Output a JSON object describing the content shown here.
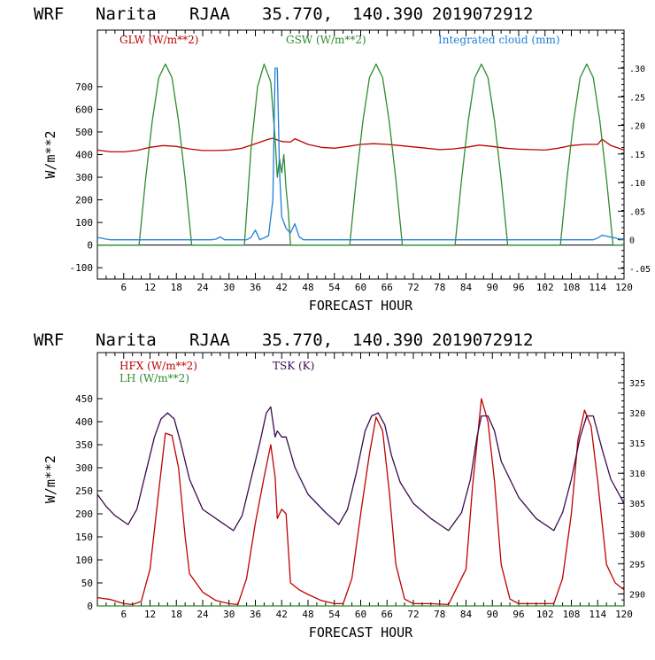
{
  "chart_data": [
    {
      "type": "line",
      "header": [
        "WRF",
        "Narita",
        "RJAA",
        "35.770,",
        "140.390",
        "2019072912"
      ],
      "xlabel": "FORECAST HOUR",
      "ylabel": "W/m**2",
      "xlim": [
        0,
        120
      ],
      "ylim": [
        -150,
        950
      ],
      "y2lim": [
        -0.0687,
        0.3667
      ],
      "x_ticks": [
        6,
        12,
        18,
        24,
        30,
        36,
        42,
        48,
        54,
        60,
        66,
        72,
        78,
        84,
        90,
        96,
        102,
        108,
        114,
        120
      ],
      "y_ticks": [
        -100,
        0,
        100,
        200,
        300,
        400,
        500,
        600,
        700
      ],
      "y2_ticks": [
        -0.05,
        0,
        0.05,
        0.1,
        0.15,
        0.2,
        0.25,
        0.3
      ],
      "y2_tick_labels": [
        "-.05",
        "0",
        ".05",
        ".10",
        ".15",
        ".20",
        ".25",
        ".30"
      ],
      "series": [
        {
          "name": "GLW (W/m**2)",
          "color": "#c00000",
          "axis": "left",
          "x": [
            0,
            3,
            6,
            9,
            12,
            15,
            18,
            21,
            24,
            27,
            30,
            33,
            36,
            39,
            40,
            42,
            44,
            45,
            48,
            51,
            54,
            57,
            60,
            63,
            66,
            69,
            72,
            75,
            78,
            81,
            84,
            87,
            90,
            93,
            96,
            99,
            102,
            105,
            108,
            111,
            114,
            115,
            117,
            120
          ],
          "y": [
            420,
            412,
            412,
            418,
            432,
            440,
            436,
            425,
            418,
            418,
            420,
            428,
            448,
            468,
            472,
            458,
            455,
            470,
            445,
            432,
            428,
            436,
            445,
            448,
            445,
            440,
            434,
            428,
            422,
            425,
            432,
            442,
            436,
            428,
            424,
            422,
            420,
            428,
            440,
            445,
            445,
            468,
            440,
            420
          ]
        },
        {
          "name": "GSW (W/m**2)",
          "color": "#2e8b2e",
          "axis": "left",
          "x": [
            0,
            9.5,
            11,
            12.5,
            14,
            15.5,
            17,
            18.5,
            20,
            21.5,
            23,
            33.5,
            35,
            36.5,
            38,
            39.5,
            40.5,
            41,
            41.5,
            42,
            42.5,
            43,
            43.5,
            44,
            45,
            45.5,
            57.5,
            59,
            60.5,
            62,
            63.5,
            65,
            66.5,
            68,
            69.5,
            71,
            81.5,
            83,
            84.5,
            86,
            87.5,
            89,
            90.5,
            92,
            93.5,
            95,
            105.5,
            107,
            108.5,
            110,
            111.5,
            113,
            114.5,
            116,
            117.5,
            119,
            120
          ],
          "y": [
            0,
            0,
            292,
            548,
            740,
            800,
            740,
            548,
            292,
            0,
            0,
            0,
            420,
            700,
            800,
            720,
            470,
            300,
            380,
            320,
            400,
            250,
            150,
            0,
            0,
            0,
            0,
            292,
            548,
            740,
            800,
            740,
            548,
            292,
            0,
            0,
            0,
            292,
            548,
            740,
            800,
            740,
            548,
            292,
            0,
            0,
            0,
            292,
            548,
            740,
            800,
            740,
            548,
            292,
            0,
            0,
            0
          ]
        },
        {
          "name": "Integrated cloud (mm)",
          "color": "#1f7fd6",
          "axis": "right",
          "x": [
            0,
            1,
            2,
            3,
            26,
            27,
            28,
            29,
            34,
            35,
            36,
            37,
            39,
            40,
            40.5,
            41,
            41.5,
            42,
            43,
            44,
            45,
            46,
            47,
            48,
            113,
            114,
            115,
            120
          ],
          "y": [
            0.004,
            0.003,
            0.001,
            0,
            0,
            0.001,
            0.005,
            0,
            0,
            0.004,
            0.017,
            0,
            0.007,
            0.07,
            0.3,
            0.3,
            0.12,
            0.04,
            0.02,
            0.012,
            0.028,
            0.005,
            0,
            0,
            0,
            0.003,
            0.008,
            0
          ]
        }
      ]
    },
    {
      "type": "line",
      "header": [
        "WRF",
        "Narita",
        "RJAA",
        "35.770,",
        "140.390",
        "2019072912"
      ],
      "xlabel": "FORECAST HOUR",
      "ylabel": "W/m**2",
      "xlim": [
        0,
        120
      ],
      "ylim": [
        0,
        550
      ],
      "y2lim": [
        288,
        330
      ],
      "x_ticks": [
        6,
        12,
        18,
        24,
        30,
        36,
        42,
        48,
        54,
        60,
        66,
        72,
        78,
        84,
        90,
        96,
        102,
        108,
        114,
        120
      ],
      "y_ticks": [
        0,
        50,
        100,
        150,
        200,
        250,
        300,
        350,
        400,
        450
      ],
      "y2_ticks": [
        290,
        295,
        300,
        305,
        310,
        315,
        320,
        325
      ],
      "y2_tick_labels": [
        "290",
        "295",
        "300",
        "305",
        "310",
        "315",
        "320",
        "325"
      ],
      "series": [
        {
          "name": "HFX (W/m**2)",
          "color": "#c00000",
          "axis": "left",
          "x": [
            0,
            3,
            6,
            8,
            10,
            12,
            14,
            15.5,
            17,
            18.5,
            20,
            21,
            24,
            27,
            30,
            32,
            34,
            36,
            38,
            39.5,
            40.5,
            41,
            42,
            43,
            44,
            46,
            48,
            51,
            54,
            56,
            58,
            60,
            62,
            63.5,
            65,
            66.5,
            68,
            70,
            72,
            76,
            80,
            84,
            85.5,
            87.5,
            89,
            90.5,
            92,
            94,
            96,
            100,
            104,
            106,
            108,
            109.5,
            111,
            112.5,
            114,
            116,
            118,
            120
          ],
          "y": [
            18,
            14,
            5,
            3,
            10,
            80,
            250,
            375,
            370,
            300,
            150,
            70,
            30,
            12,
            5,
            3,
            60,
            180,
            280,
            350,
            280,
            190,
            210,
            200,
            50,
            35,
            25,
            12,
            5,
            5,
            60,
            200,
            330,
            410,
            380,
            250,
            90,
            15,
            5,
            5,
            3,
            80,
            260,
            450,
            400,
            270,
            90,
            15,
            5,
            5,
            5,
            60,
            200,
            360,
            425,
            390,
            270,
            90,
            50,
            35
          ]
        },
        {
          "name": "LH (W/m**2)",
          "color": "#2e8b2e",
          "axis": "left",
          "x": [
            0,
            120
          ],
          "y": [
            0,
            0
          ]
        },
        {
          "name": "TSK (K)",
          "color": "#3a0a4e",
          "axis": "right",
          "x": [
            0,
            2,
            4,
            7,
            9,
            11,
            13,
            14.5,
            16,
            17.5,
            19,
            21,
            24,
            28,
            31,
            33,
            35,
            37,
            38.5,
            39.5,
            40.5,
            41,
            42,
            43,
            45,
            48,
            52,
            55,
            57,
            59,
            61,
            62.5,
            64,
            65.5,
            67,
            69,
            72,
            76,
            80,
            83,
            85,
            86.5,
            87.5,
            89,
            90.5,
            92,
            96,
            100,
            104,
            106,
            108,
            110,
            111.5,
            113,
            115,
            117,
            120
          ],
          "y": [
            306.5,
            304.5,
            303,
            301.5,
            304,
            310,
            316,
            319,
            320,
            319,
            315,
            309,
            304,
            302,
            300.5,
            303,
            309,
            315,
            320,
            321,
            316,
            317,
            316,
            316,
            311,
            306.5,
            303.5,
            301.5,
            304,
            310,
            317,
            319.5,
            320,
            318,
            313,
            308.5,
            305,
            302.5,
            300.5,
            303.5,
            309,
            316,
            319.5,
            319.5,
            317,
            312,
            306,
            302.5,
            300.5,
            303.5,
            309,
            316,
            319.5,
            319.5,
            314,
            309,
            305
          ]
        }
      ]
    }
  ]
}
